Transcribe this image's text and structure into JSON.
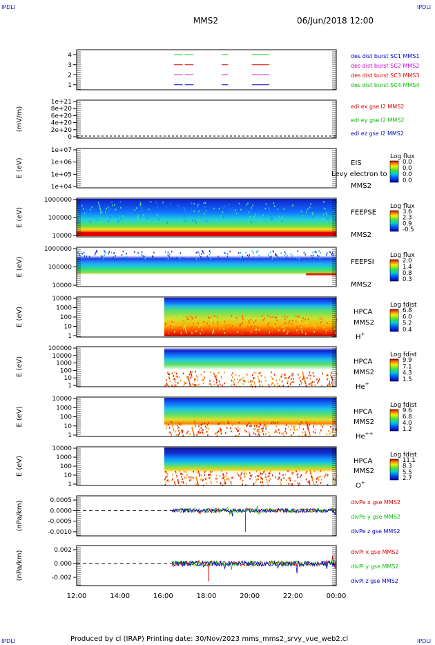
{
  "corners": {
    "top_left": "IPDLI",
    "top_right": "IPDLI",
    "bottom_left": "IPDLI",
    "bottom_right": "IPDLI"
  },
  "header": {
    "spacecraft": "MMS2",
    "datetime": "06/Jun/2018 12:00"
  },
  "footer": {
    "text": "Produced by cl (IRAP)   Printing date: 30/Nov/2023   mms_mms2_srvy_vue_web2.cl"
  },
  "colors": {
    "red": "#e00000",
    "green": "#00c000",
    "blue": "#0000c8",
    "magenta": "#d000d0",
    "axis": "#000000"
  },
  "x_axis": {
    "ticks": [
      "12:00",
      "14:00",
      "16:00",
      "18:00",
      "20:00",
      "22:00",
      "00:00"
    ],
    "start_hour": 12,
    "end_hour": 24
  },
  "chart_data": [
    {
      "id": "panel-burst",
      "type": "line",
      "ylabel": "",
      "ylim": [
        0.5,
        4.5
      ],
      "yticks": [
        "1",
        "2",
        "3",
        "4"
      ],
      "legend": [
        {
          "text": "des dist burst SC1 MMS1",
          "color": "#0000c8"
        },
        {
          "text": "des dist burst SC2 MMS2",
          "color": "#d000d0"
        },
        {
          "text": "des dist burst SC3 MMS3",
          "color": "#e00000"
        },
        {
          "text": "des dist burst SC4 MMS4",
          "color": "#00c000"
        }
      ],
      "series": [
        {
          "level": 4,
          "color": "#00c000",
          "segments": [
            [
              16.5,
              16.9
            ],
            [
              17.0,
              17.4
            ],
            [
              18.7,
              19.0
            ],
            [
              20.1,
              20.9
            ]
          ]
        },
        {
          "level": 3,
          "color": "#e00000",
          "segments": [
            [
              16.5,
              16.9
            ],
            [
              17.0,
              17.4
            ],
            [
              18.7,
              19.0
            ],
            [
              20.1,
              20.9
            ]
          ]
        },
        {
          "level": 2,
          "color": "#d000d0",
          "segments": [
            [
              16.5,
              16.9
            ],
            [
              17.0,
              17.4
            ],
            [
              18.7,
              19.0
            ],
            [
              20.1,
              20.9
            ]
          ]
        },
        {
          "level": 1,
          "color": "#0000c8",
          "segments": [
            [
              16.5,
              16.9
            ],
            [
              17.0,
              17.4
            ],
            [
              18.7,
              19.0
            ],
            [
              20.1,
              20.9
            ]
          ]
        }
      ]
    },
    {
      "id": "panel-edi",
      "type": "line",
      "ylabel": "(mV/m)",
      "yticks": [
        "0",
        "2e+20",
        "4e+20",
        "6e+20",
        "8e+20",
        "1e+21"
      ],
      "legend": [
        {
          "text": "edi ex gse l2 MMS2",
          "color": "#e00000"
        },
        {
          "text": "edi ey gse l2 MMS2",
          "color": "#00c000"
        },
        {
          "text": "edi ez gse l2 MMS2",
          "color": "#0000c8"
        }
      ]
    },
    {
      "id": "panel-eis",
      "type": "heatmap",
      "ylabel": "E (eV)",
      "yticks": [
        "1e+04",
        "1e+05",
        "1e+06",
        "1e+07"
      ],
      "instrument": [
        "EIS",
        "MMS2"
      ],
      "overlay": "Levy electron to",
      "colorbar": {
        "title": "Log flux",
        "labels": [
          "0.0",
          "0.0",
          "0.0",
          "0.0"
        ]
      }
    },
    {
      "id": "panel-feepse",
      "type": "heatmap",
      "ylabel": "E (eV)",
      "yticks": [
        "10000",
        "100000",
        "1000000"
      ],
      "instrument": [
        "FEEPSE",
        "MMS2"
      ],
      "colorbar": {
        "title": "Log flux",
        "labels": [
          "3.6",
          "2.3",
          "0.9",
          "-0.5"
        ]
      }
    },
    {
      "id": "panel-feepsi",
      "type": "heatmap",
      "ylabel": "E (eV)",
      "yticks": [
        "10000",
        "100000",
        "1000000"
      ],
      "instrument": [
        "FEEPSI",
        "MMS2"
      ],
      "colorbar": {
        "title": "Log flux",
        "labels": [
          "2.0",
          "1.4",
          "0.8",
          "0.3"
        ]
      }
    },
    {
      "id": "panel-hpca-h",
      "type": "heatmap",
      "ylabel": "E (eV)",
      "yticks": [
        "1",
        "10",
        "100",
        "1000",
        "10000"
      ],
      "instrument": [
        "HPCA",
        "MMS2"
      ],
      "species": "H",
      "charge": "+",
      "start_hour": 16.05,
      "colorbar": {
        "title": "Log fdist",
        "labels": [
          "6.8",
          "6.0",
          "5.2",
          "0.4"
        ]
      }
    },
    {
      "id": "panel-hpca-he",
      "type": "heatmap",
      "ylabel": "E (eV)",
      "yticks": [
        "1",
        "10",
        "100",
        "1000",
        "10000",
        "100000"
      ],
      "instrument": [
        "HPCA",
        "MMS2"
      ],
      "species": "He",
      "charge": "+",
      "start_hour": 16.05,
      "colorbar": {
        "title": "Log fdist",
        "labels": [
          "9.9",
          "7.1",
          "4.3",
          "1.5"
        ]
      }
    },
    {
      "id": "panel-hpca-he2",
      "type": "heatmap",
      "ylabel": "E (eV)",
      "yticks": [
        "1",
        "10",
        "100",
        "1000",
        "10000"
      ],
      "instrument": [
        "HPCA",
        "MMS2"
      ],
      "species": "He",
      "charge": "++",
      "start_hour": 16.05,
      "colorbar": {
        "title": "Log fdist",
        "labels": [
          "9.6",
          "6.8",
          "4.0",
          "1.2"
        ]
      }
    },
    {
      "id": "panel-hpca-o",
      "type": "heatmap",
      "ylabel": "E (eV)",
      "yticks": [
        "1",
        "10",
        "100",
        "1000",
        "10000"
      ],
      "instrument": [
        "HPCA",
        "MMS2"
      ],
      "species": "O",
      "charge": "+",
      "start_hour": 16.05,
      "colorbar": {
        "title": "Log fdist",
        "labels": [
          "11.1",
          "8.3",
          "5.5",
          "2.7"
        ]
      }
    },
    {
      "id": "panel-divpe",
      "type": "line",
      "ylabel": "(nPa/km)",
      "ylim": [
        -0.0012,
        0.0007
      ],
      "yticks": [
        "-0.0010",
        "-0.0005",
        "0.0000",
        "0.0005"
      ],
      "ytick_values": [
        -0.001,
        -0.0005,
        0,
        0.0005
      ],
      "start_hour": 16.4,
      "legend": [
        {
          "text": "divPe x gse MMS2",
          "color": "#e00000"
        },
        {
          "text": "divPe y gse MMS2",
          "color": "#00c000"
        },
        {
          "text": "divPe z gse MMS2",
          "color": "#0000c8"
        }
      ]
    },
    {
      "id": "panel-divpi",
      "type": "line",
      "ylabel": "(nPa/km)",
      "ylim": [
        -0.0032,
        0.0026
      ],
      "yticks": [
        "-0.002",
        "0.000",
        "0.002"
      ],
      "ytick_values": [
        -0.002,
        0,
        0.002
      ],
      "start_hour": 16.4,
      "legend": [
        {
          "text": "divPi x gse MMS2",
          "color": "#e00000"
        },
        {
          "text": "divPi y gse MMS2",
          "color": "#00c000"
        },
        {
          "text": "divPi z gse MMS2",
          "color": "#0000c8"
        }
      ]
    }
  ]
}
